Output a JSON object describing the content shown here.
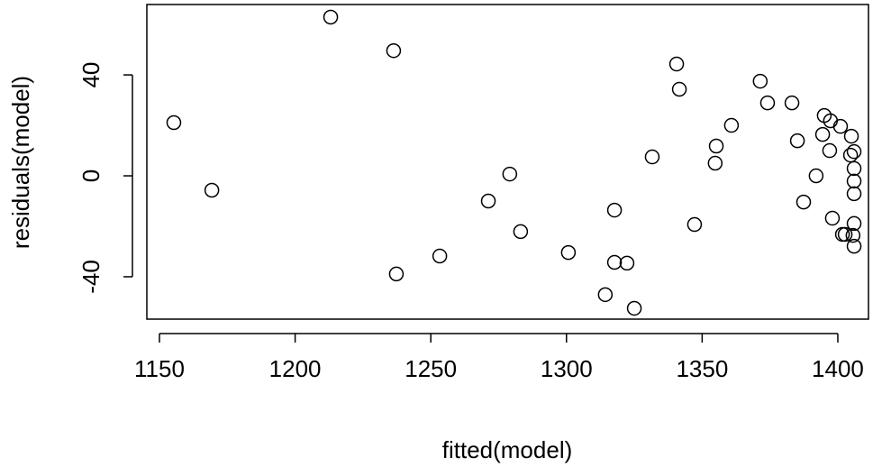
{
  "chart_data": {
    "type": "scatter",
    "xlabel": "fitted(model)",
    "ylabel": "residuals(model)",
    "xlim": [
      1145.35,
      1411.3
    ],
    "ylim": [
      -56.8,
      67.9
    ],
    "xticks": [
      1150,
      1200,
      1250,
      1300,
      1350,
      1400
    ],
    "yticks": [
      -40,
      0,
      40
    ],
    "color": "#000000",
    "x": [
      1155.3,
      1169.3,
      1213.1,
      1236.3,
      1237.3,
      1253.3,
      1271.2,
      1279.1,
      1283.1,
      1300.7,
      1314.3,
      1317.7,
      1317.7,
      1322.3,
      1325,
      1331.6,
      1340.6,
      1341.6,
      1347.2,
      1354.8,
      1355.2,
      1360.8,
      1371.4,
      1374.1,
      1383.1,
      1385.1,
      1387.4,
      1392,
      1394.4,
      1395,
      1397.3,
      1397,
      1398,
      1401,
      1401.7,
      1402.7,
      1405,
      1404.7,
      1406,
      1406,
      1406,
      1406,
      1406,
      1405.6,
      1406
    ],
    "values": [
      21.1,
      -5.7,
      62.9,
      49.6,
      -38.9,
      -31.8,
      -10,
      0.7,
      -22.1,
      -30.4,
      -47.1,
      -34.3,
      -13.6,
      -34.6,
      -52.5,
      7.5,
      44.3,
      34.3,
      -19.3,
      5,
      11.8,
      20,
      37.5,
      28.9,
      28.9,
      13.9,
      -10.4,
      0,
      16.4,
      23.9,
      21.8,
      10,
      -16.8,
      19.6,
      -23.2,
      -23.2,
      15.7,
      8.2,
      9.6,
      2.9,
      -2.1,
      -7.1,
      -18.9,
      -23.6,
      -27.9
    ]
  }
}
